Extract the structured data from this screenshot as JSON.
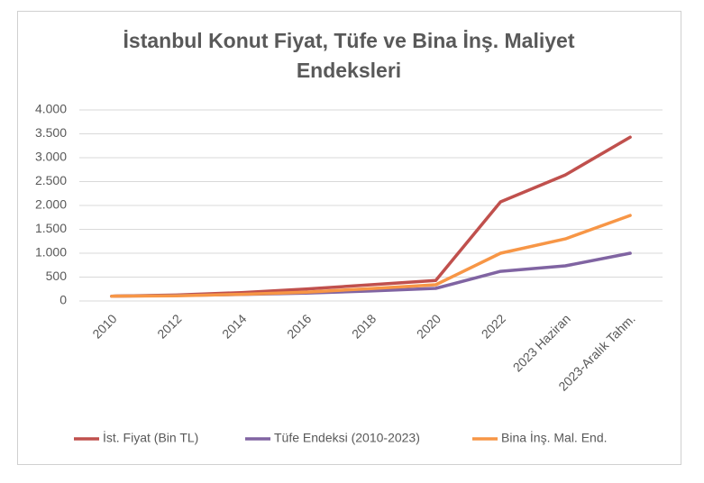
{
  "chart_data": {
    "type": "line",
    "title": [
      "İstanbul Konut Fiyat, Tüfe ve Bina İnş. Maliyet",
      "Endeksleri"
    ],
    "categories": [
      "2010",
      "2012",
      "2014",
      "2016",
      "2018",
      "2020",
      "2022",
      "2023 Haziran",
      "2023-Aralık Tahm."
    ],
    "series": [
      {
        "name": "İst. Fiyat (Bin TL)",
        "color": "#c0504d",
        "values": [
          100,
          125,
          175,
          250,
          340,
          430,
          2075,
          2640,
          3430
        ]
      },
      {
        "name": "Tüfe Endeksi (2010-2023)",
        "color": "#8064a2",
        "values": [
          100,
          115,
          135,
          165,
          210,
          265,
          620,
          735,
          1000
        ]
      },
      {
        "name": "Bina İnş. Mal. End.",
        "color": "#f79646",
        "values": [
          100,
          110,
          140,
          185,
          260,
          340,
          1000,
          1300,
          1790
        ]
      }
    ],
    "ylim": [
      0,
      4000
    ],
    "yticks": [
      0,
      500,
      {
        "value": 1000,
        "label": "1.000"
      },
      {
        "value": 1500,
        "label": "1.500"
      },
      {
        "value": 2000,
        "label": "2.000"
      },
      {
        "value": 2500,
        "label": "2.500"
      },
      {
        "value": 3000,
        "label": "3.000"
      },
      {
        "value": 3500,
        "label": "3.500"
      },
      {
        "value": 4000,
        "label": "4.000"
      }
    ],
    "grid": true,
    "legend": "bottom"
  }
}
